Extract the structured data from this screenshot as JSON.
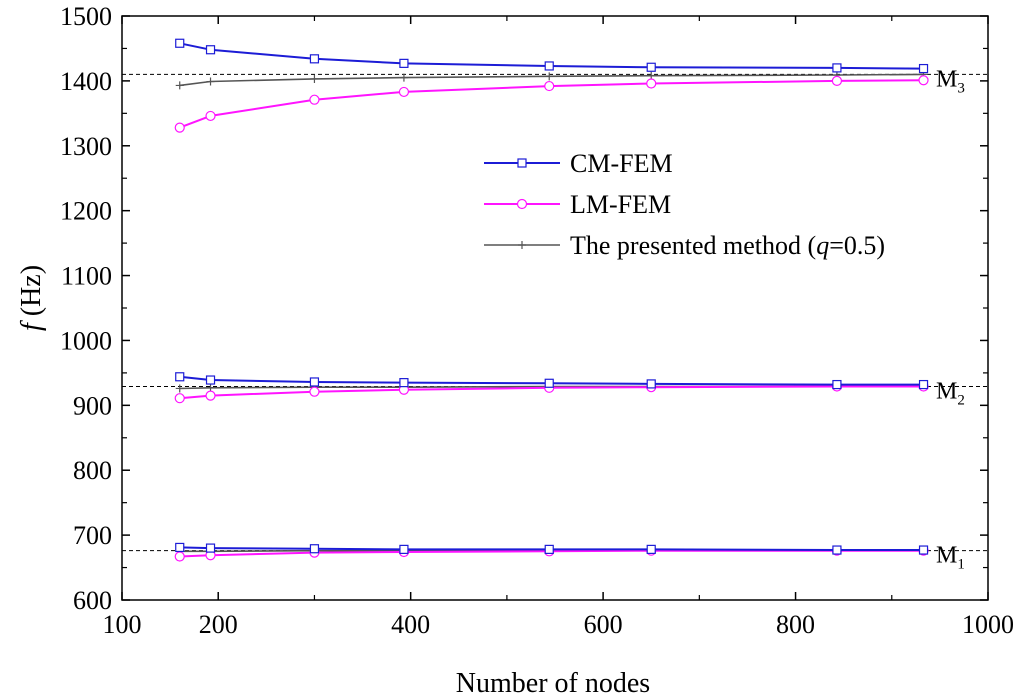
{
  "chart_data": {
    "type": "line",
    "title": "",
    "xlabel": "Number of nodes",
    "ylabel": {
      "italic": "f",
      "rest": " (Hz)"
    },
    "xlim": [
      100,
      1000
    ],
    "ylim": [
      600,
      1500
    ],
    "xticks": [
      100,
      200,
      400,
      600,
      800,
      1000
    ],
    "yticks": [
      600,
      700,
      800,
      900,
      1000,
      1100,
      1200,
      1300,
      1400,
      1500
    ],
    "grid": false,
    "legend_position": "center-right",
    "x": [
      160,
      192,
      300,
      393,
      544,
      650,
      843,
      933
    ],
    "groups": [
      {
        "mode_label": {
          "base": "M",
          "sub": "3"
        },
        "reference": 1410,
        "series": [
          {
            "key": "cm",
            "values": [
              1458,
              1448,
              1434,
              1427,
              1423,
              1421,
              1420,
              1419
            ]
          },
          {
            "key": "lm",
            "values": [
              1328,
              1346,
              1371,
              1383,
              1392,
              1396,
              1400,
              1401
            ]
          },
          {
            "key": "pm",
            "values": [
              1393,
              1399,
              1403,
              1405,
              1407,
              1408,
              1409,
              1410
            ]
          }
        ]
      },
      {
        "mode_label": {
          "base": "M",
          "sub": "2"
        },
        "reference": 929,
        "series": [
          {
            "key": "cm",
            "values": [
              944,
              939,
              936,
              935,
              934,
              933,
              932,
              932
            ]
          },
          {
            "key": "lm",
            "values": [
              911,
              915,
              921,
              924,
              927,
              928,
              929,
              929
            ]
          },
          {
            "key": "pm",
            "values": [
              926,
              927,
              928,
              928,
              929,
              929,
              929,
              929
            ]
          }
        ]
      },
      {
        "mode_label": {
          "base": "M",
          "sub": "1"
        },
        "reference": 676,
        "series": [
          {
            "key": "cm",
            "values": [
              681,
              680,
              679,
              678,
              678,
              678,
              677,
              677
            ]
          },
          {
            "key": "lm",
            "values": [
              667,
              669,
              673,
              674,
              675,
              676,
              676,
              676
            ]
          },
          {
            "key": "pm",
            "values": [
              675,
              675,
              676,
              676,
              676,
              676,
              676,
              676
            ]
          }
        ]
      }
    ],
    "legend": [
      {
        "key": "cm",
        "label": "CM-FEM",
        "color": "#1c1cd6",
        "marker": "square"
      },
      {
        "key": "lm",
        "label": "LM-FEM",
        "color": "#ff14ff",
        "marker": "circle"
      },
      {
        "key": "pm",
        "label_parts": [
          "The presented method (",
          "q",
          "=0.5)"
        ],
        "color": "#555555",
        "marker": "plus"
      }
    ]
  }
}
